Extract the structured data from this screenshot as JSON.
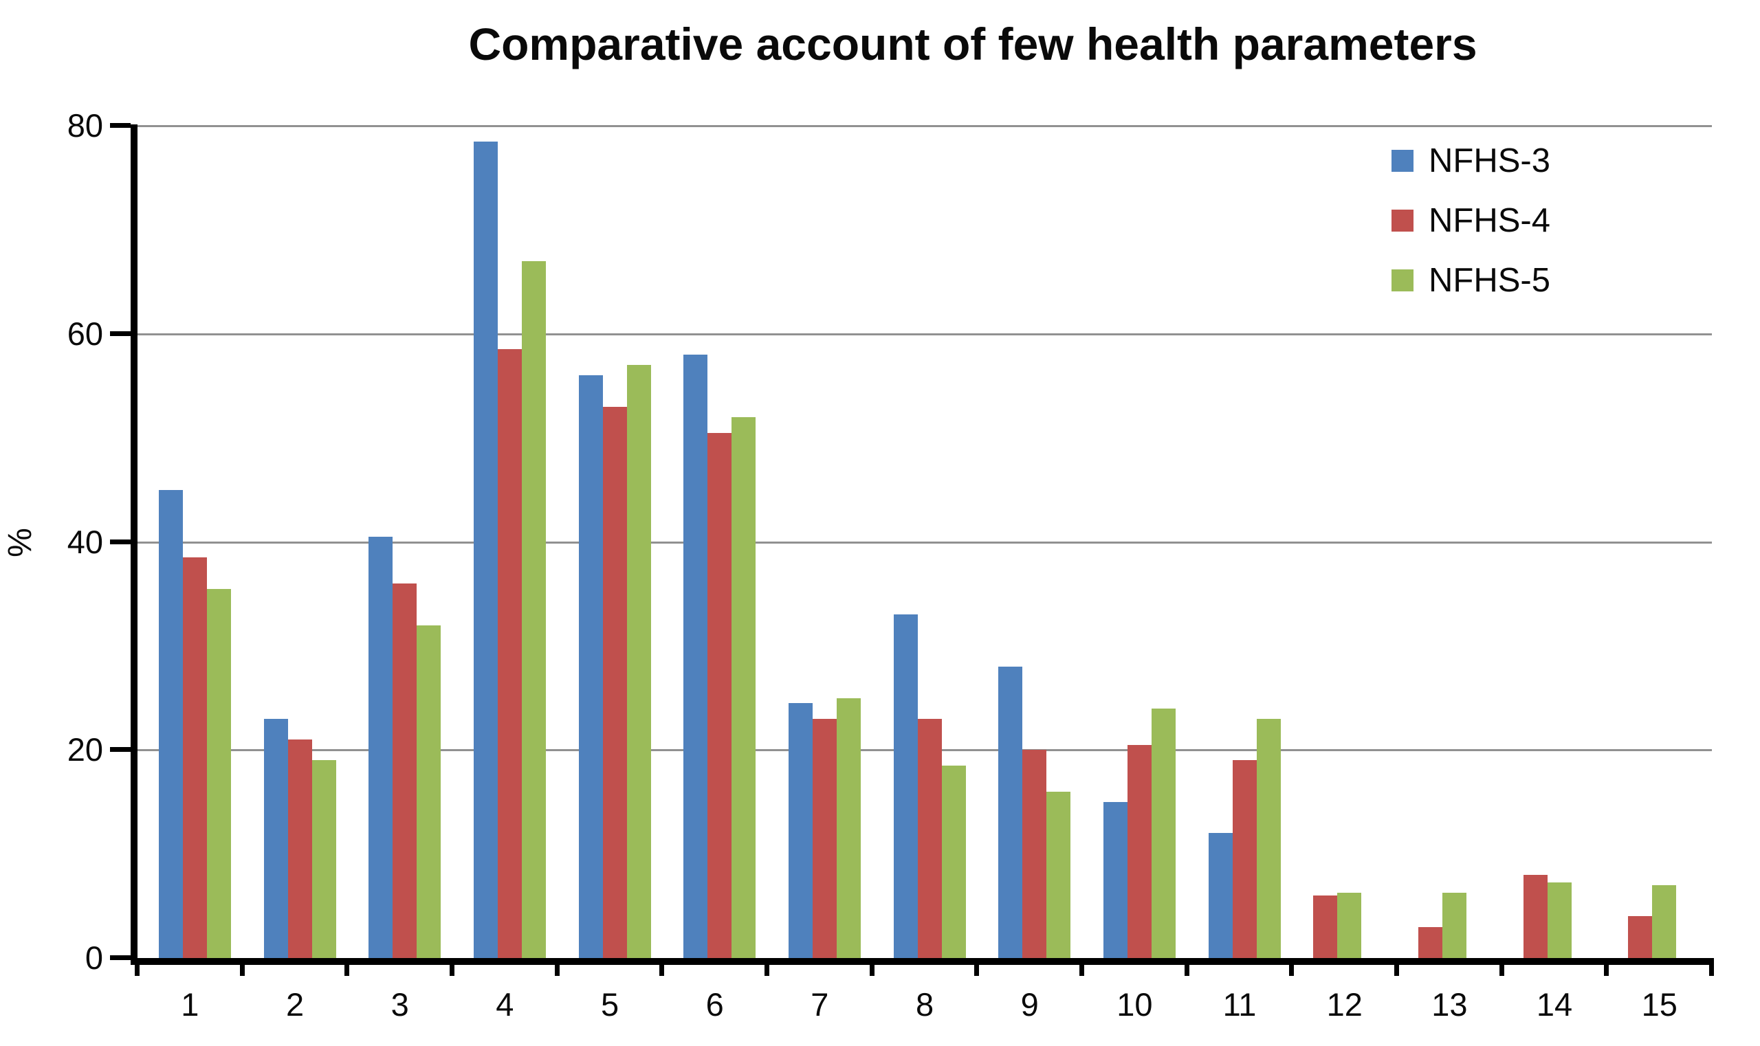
{
  "title": "Comparative account of few health parameters",
  "y_axis": {
    "label": "%",
    "ticks": [
      "0",
      "20",
      "40",
      "60",
      "80"
    ],
    "min": 0,
    "max": 80
  },
  "x_axis": {
    "categories": [
      "1",
      "2",
      "3",
      "4",
      "5",
      "6",
      "7",
      "8",
      "9",
      "10",
      "11",
      "12",
      "13",
      "14",
      "15"
    ]
  },
  "legend": {
    "position": "top-right",
    "items": [
      {
        "label": "NFHS-3",
        "color": "#4F81BD"
      },
      {
        "label": "NFHS-4",
        "color": "#C0504D"
      },
      {
        "label": "NFHS-5",
        "color": "#9BBB59"
      }
    ]
  },
  "colors": {
    "gridline": "#919191",
    "axis": "#000000",
    "background": "#FFFFFF"
  },
  "chart_data": {
    "type": "bar",
    "title": "Comparative account of few health parameters",
    "xlabel": "",
    "ylabel": "%",
    "ylim": [
      0,
      80
    ],
    "ytick_step": 20,
    "grid": true,
    "legend_position": "top-right",
    "categories": [
      "1",
      "2",
      "3",
      "4",
      "5",
      "6",
      "7",
      "8",
      "9",
      "10",
      "11",
      "12",
      "13",
      "14",
      "15"
    ],
    "series": [
      {
        "name": "NFHS-3",
        "color": "#4F81BD",
        "values": [
          45,
          23,
          40.5,
          78.5,
          56,
          58,
          24.5,
          33,
          28,
          15,
          12,
          null,
          null,
          null,
          null
        ]
      },
      {
        "name": "NFHS-4",
        "color": "#C0504D",
        "values": [
          38.5,
          21,
          36,
          58.5,
          53,
          50.5,
          23,
          23,
          20,
          20.5,
          19,
          6,
          3,
          8,
          4
        ]
      },
      {
        "name": "NFHS-5",
        "color": "#9BBB59",
        "values": [
          35.5,
          19,
          32,
          67,
          57,
          52,
          25,
          18.5,
          16,
          24,
          23,
          6.3,
          6.3,
          7.3,
          7
        ]
      }
    ]
  }
}
